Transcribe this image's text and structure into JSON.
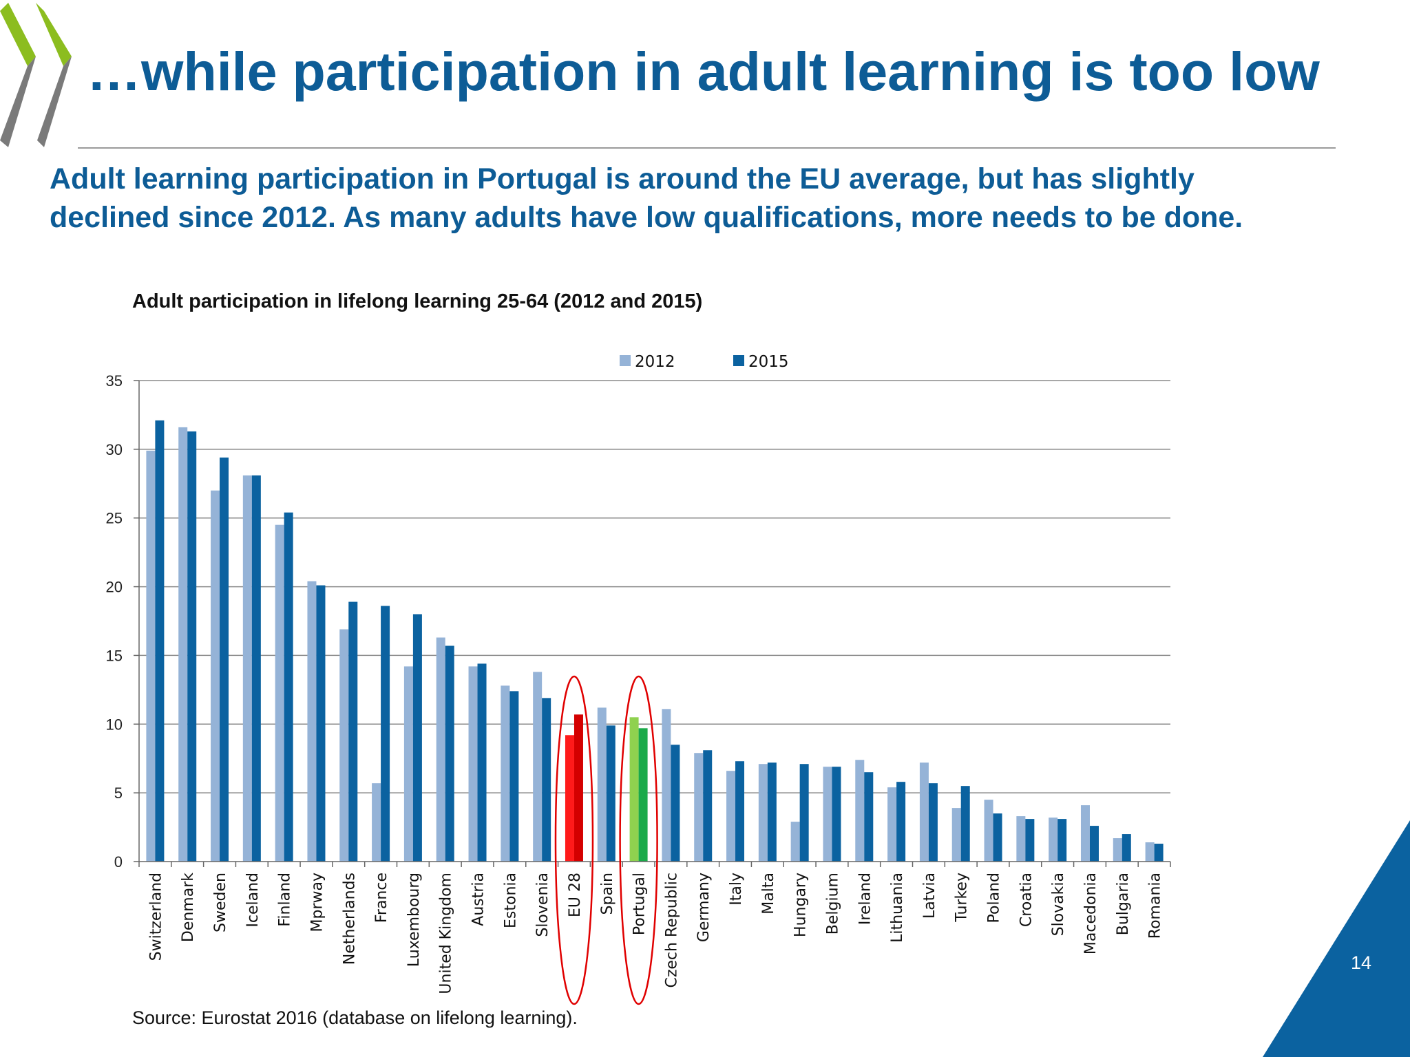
{
  "slide": {
    "title": "…while participation in adult learning is too low",
    "subtitle_line1": "Adult learning participation in Portugal is around the EU average, but has slightly",
    "subtitle_line2": "declined since 2012. As many adults have low qualifications, more needs to be done.",
    "source": "Source: Eurostat 2016 (database on lifelong learning).",
    "page_number": "14"
  },
  "colors": {
    "title_blue": "#0d5c96",
    "series_2012": "#95b3d7",
    "series_2015": "#0b62a0",
    "eu_2012": "#ff1a1a",
    "eu_2015": "#d40000",
    "portugal_2012": "#8fd14f",
    "portugal_2015": "#1aaa4a",
    "highlight_ellipse": "#e00000",
    "logo_green": "#8cbd1f",
    "logo_gray": "#7a7a7a",
    "corner_blue": "#0b62a0"
  },
  "chart_data": {
    "type": "bar",
    "title": "Adult participation in lifelong learning 25-64 (2012 and 2015)",
    "xlabel": "",
    "ylabel": "",
    "ylim": [
      0,
      35
    ],
    "yticks": [
      0,
      5,
      10,
      15,
      20,
      25,
      30,
      35
    ],
    "grid": true,
    "legend_position": "top-center",
    "categories": [
      "Switzerland",
      "Denmark",
      "Sweden",
      "Iceland",
      "Finland",
      "Mprway",
      "Netherlands",
      "France",
      "Luxembourg",
      "United Kingdom",
      "Austria",
      "Estonia",
      "Slovenia",
      "EU 28",
      "Spain",
      "Portugal",
      "Czech Republic",
      "Germany",
      "Italy",
      "Malta",
      "Hungary",
      "Belgium",
      "Ireland",
      "Lithuania",
      "Latvia",
      "Turkey",
      "Poland",
      "Croatia",
      "Slovakia",
      "Macedonia",
      "Bulgaria",
      "Romania"
    ],
    "series": [
      {
        "name": "2012",
        "values": [
          29.9,
          31.6,
          27.0,
          28.1,
          24.5,
          20.4,
          16.9,
          5.7,
          14.2,
          16.3,
          14.2,
          12.8,
          13.8,
          9.2,
          11.2,
          10.5,
          11.1,
          7.9,
          6.6,
          7.1,
          2.9,
          6.9,
          7.4,
          5.4,
          7.2,
          3.9,
          4.5,
          3.3,
          3.2,
          4.1,
          1.7,
          1.4
        ]
      },
      {
        "name": "2015",
        "values": [
          32.1,
          31.3,
          29.4,
          28.1,
          25.4,
          20.1,
          18.9,
          18.6,
          18.0,
          15.7,
          14.4,
          12.4,
          11.9,
          10.7,
          9.9,
          9.7,
          8.5,
          8.1,
          7.3,
          7.2,
          7.1,
          6.9,
          6.5,
          5.8,
          5.7,
          5.5,
          3.5,
          3.1,
          3.1,
          2.6,
          2.0,
          1.3
        ]
      }
    ],
    "highlighted_categories": [
      "EU 28",
      "Portugal"
    ]
  }
}
